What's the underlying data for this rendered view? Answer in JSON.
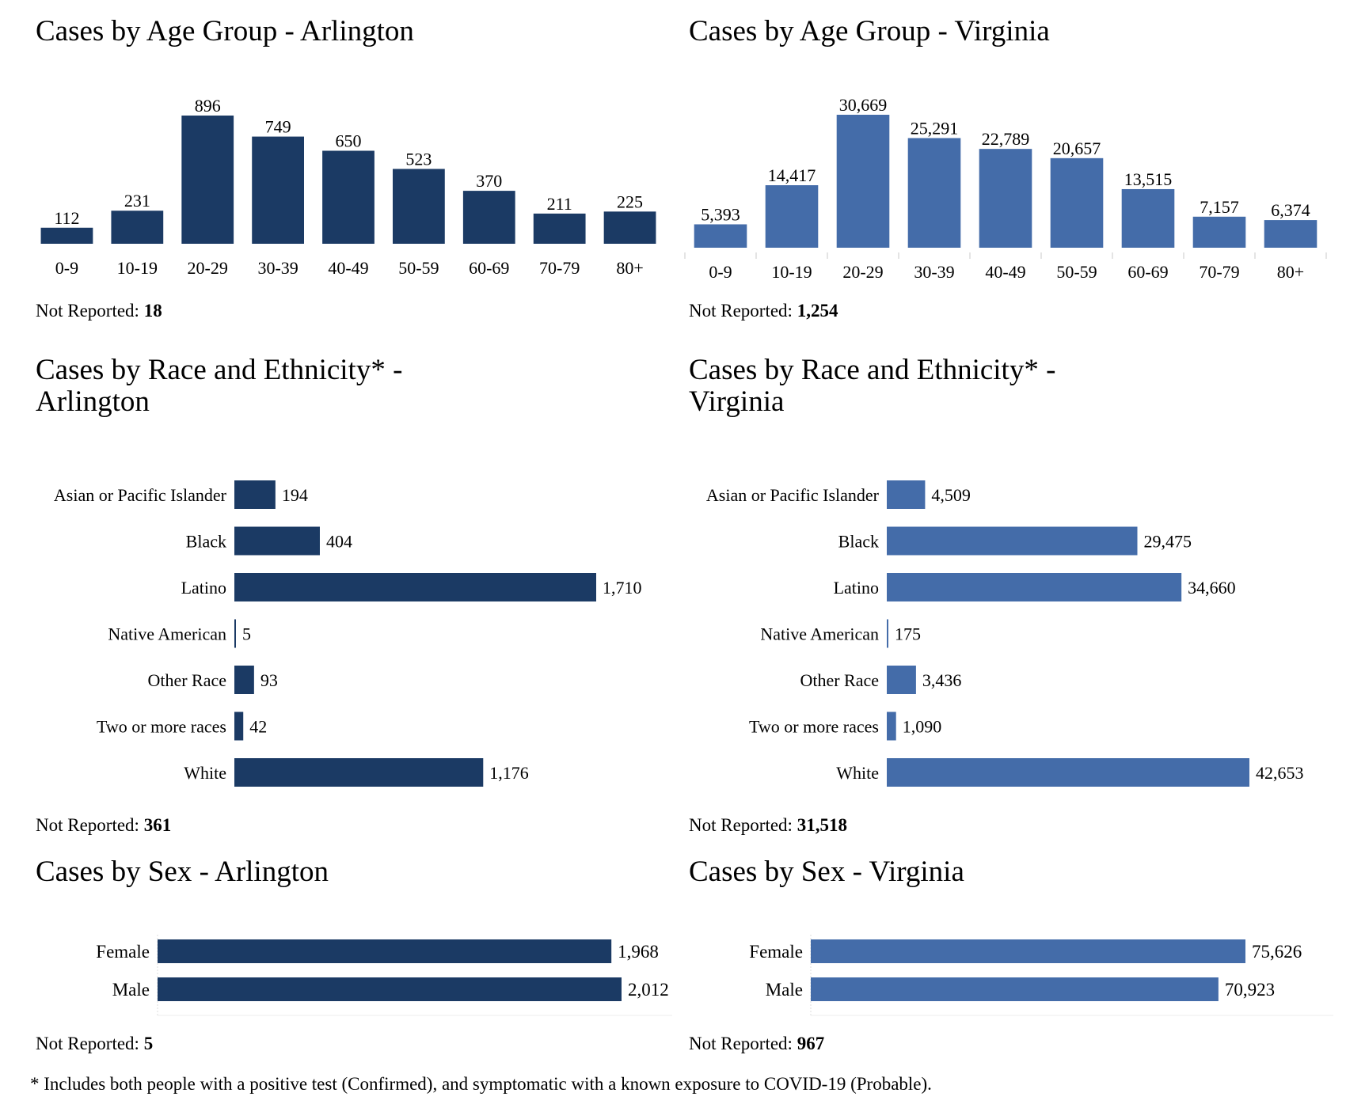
{
  "colors": {
    "arlington": "#1b3a64",
    "virginia": "#446ca9",
    "axis": "#dddddd"
  },
  "chart_data": [
    {
      "id": "age_arlington",
      "type": "bar",
      "orientation": "vertical",
      "title": "Cases by Age Group - Arlington",
      "categories": [
        "0-9",
        "10-19",
        "20-29",
        "30-39",
        "40-49",
        "50-59",
        "60-69",
        "70-79",
        "80+"
      ],
      "values": [
        112,
        231,
        896,
        749,
        650,
        523,
        370,
        211,
        225
      ],
      "labels": [
        "112",
        "231",
        "896",
        "749",
        "650",
        "523",
        "370",
        "211",
        "225"
      ],
      "not_reported_label": "Not Reported:",
      "not_reported": "18",
      "xlabel": "",
      "ylabel": "",
      "grid": false
    },
    {
      "id": "age_virginia",
      "type": "bar",
      "orientation": "vertical",
      "title": "Cases by Age Group - Virginia",
      "categories": [
        "0-9",
        "10-19",
        "20-29",
        "30-39",
        "40-49",
        "50-59",
        "60-69",
        "70-79",
        "80+"
      ],
      "values": [
        5393,
        14417,
        30669,
        25291,
        22789,
        20657,
        13515,
        7157,
        6374
      ],
      "labels": [
        "5,393",
        "14,417",
        "30,669",
        "25,291",
        "22,789",
        "20,657",
        "13,515",
        "7,157",
        "6,374"
      ],
      "not_reported_label": "Not Reported:",
      "not_reported": "1,254",
      "xlabel": "",
      "ylabel": "",
      "grid": false
    },
    {
      "id": "race_arlington",
      "type": "bar",
      "orientation": "horizontal",
      "title_line1": "Cases by Race and Ethnicity* -",
      "title_line2": "Arlington",
      "categories": [
        "Asian or Pacific Islander",
        "Black",
        "Latino",
        "Native American",
        "Other Race",
        "Two or more races",
        "White"
      ],
      "values": [
        194,
        404,
        1710,
        5,
        93,
        42,
        1176
      ],
      "labels": [
        "194",
        "404",
        "1,710",
        "5",
        "93",
        "42",
        "1,176"
      ],
      "not_reported_label": "Not Reported:",
      "not_reported": "361",
      "grid": false
    },
    {
      "id": "race_virginia",
      "type": "bar",
      "orientation": "horizontal",
      "title_line1": "Cases by Race and Ethnicity* -",
      "title_line2": "Virginia",
      "categories": [
        "Asian or Pacific Islander",
        "Black",
        "Latino",
        "Native American",
        "Other Race",
        "Two or more races",
        "White"
      ],
      "values": [
        4509,
        29475,
        34660,
        175,
        3436,
        1090,
        42653
      ],
      "labels": [
        "4,509",
        "29,475",
        "34,660",
        "175",
        "3,436",
        "1,090",
        "42,653"
      ],
      "not_reported_label": "Not Reported:",
      "not_reported": "31,518",
      "grid": false
    },
    {
      "id": "sex_arlington",
      "type": "bar",
      "orientation": "horizontal",
      "title": "Cases by Sex - Arlington",
      "categories": [
        "Female",
        "Male"
      ],
      "values": [
        1968,
        2012
      ],
      "labels": [
        "1,968",
        "2,012"
      ],
      "not_reported_label": "Not Reported:",
      "not_reported": "5",
      "grid": false
    },
    {
      "id": "sex_virginia",
      "type": "bar",
      "orientation": "horizontal",
      "title": "Cases by Sex - Virginia",
      "categories": [
        "Female",
        "Male"
      ],
      "values": [
        75626,
        70923
      ],
      "labels": [
        "75,626",
        "70,923"
      ],
      "not_reported_label": "Not Reported:",
      "not_reported": "967",
      "grid": false
    }
  ],
  "footnote": "* Includes both people with a positive test (Confirmed), and symptomatic with a known exposure to COVID-19 (Probable)."
}
